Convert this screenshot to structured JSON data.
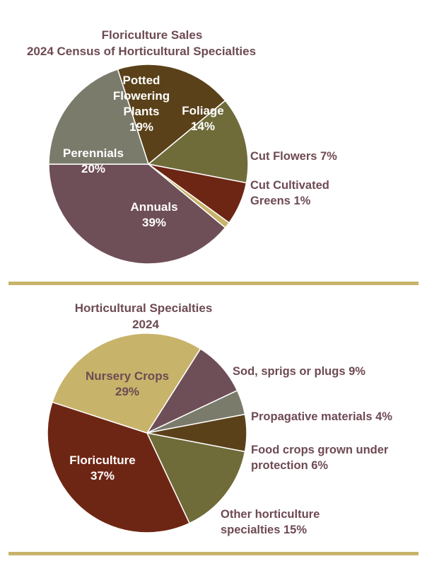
{
  "chart_data": [
    {
      "type": "pie",
      "title_lines": [
        "Floriculture Sales",
        "2024 Census of Horticultural Specialties"
      ],
      "slices": [
        {
          "name": "Potted Flowering Plants",
          "label_lines": [
            "Potted",
            "Flowering",
            "Plants",
            "19%"
          ],
          "value": 19,
          "color": "#5a4119",
          "label_pos": "inside"
        },
        {
          "name": "Foliage",
          "label_lines": [
            "Foliage",
            "14%"
          ],
          "value": 14,
          "color": "#6f6c3a",
          "label_pos": "inside"
        },
        {
          "name": "Cut Flowers",
          "label_lines": [
            "Cut Flowers 7%"
          ],
          "value": 7,
          "color": "#6e2614",
          "label_pos": "outside"
        },
        {
          "name": "Cut Cultivated Greens",
          "label_lines": [
            "Cut Cultivated",
            "Greens 1%"
          ],
          "value": 1,
          "color": "#c8b36a",
          "label_pos": "outside"
        },
        {
          "name": "Annuals",
          "label_lines": [
            "Annuals",
            "39%"
          ],
          "value": 39,
          "color": "#6e4e57",
          "label_pos": "inside"
        },
        {
          "name": "Perennials",
          "label_lines": [
            "Perennials",
            "20%"
          ],
          "value": 20,
          "color": "#7b7b6c",
          "label_pos": "inside"
        }
      ]
    },
    {
      "type": "pie",
      "title_lines": [
        "Horticultural Specialties",
        "2024"
      ],
      "slices": [
        {
          "name": "Sod, sprigs or plugs",
          "label_lines": [
            "Sod, sprigs or plugs 9%"
          ],
          "value": 9,
          "color": "#6e4e57",
          "label_pos": "outside"
        },
        {
          "name": "Propagative materials",
          "label_lines": [
            "Propagative materials 4%"
          ],
          "value": 4,
          "color": "#7b7b6c",
          "label_pos": "outside"
        },
        {
          "name": "Food crops grown under protection",
          "label_lines": [
            "Food crops grown under",
            "protection 6%"
          ],
          "value": 6,
          "color": "#5a4119",
          "label_pos": "outside"
        },
        {
          "name": "Other horticulture specialties",
          "label_lines": [
            "Other horticulture",
            "specialties 15%"
          ],
          "value": 15,
          "color": "#6f6c3a",
          "label_pos": "outside"
        },
        {
          "name": "Floriculture",
          "label_lines": [
            "Floriculture",
            "37%"
          ],
          "value": 37,
          "color": "#6e2614",
          "label_pos": "inside"
        },
        {
          "name": "Nursery Crops",
          "label_lines": [
            "Nursery Crops",
            "29%"
          ],
          "value": 29,
          "color": "#c8b36a",
          "label_pos": "inside",
          "label_color": "#6e4a53"
        }
      ]
    }
  ],
  "divider_color": "#c8b36a"
}
